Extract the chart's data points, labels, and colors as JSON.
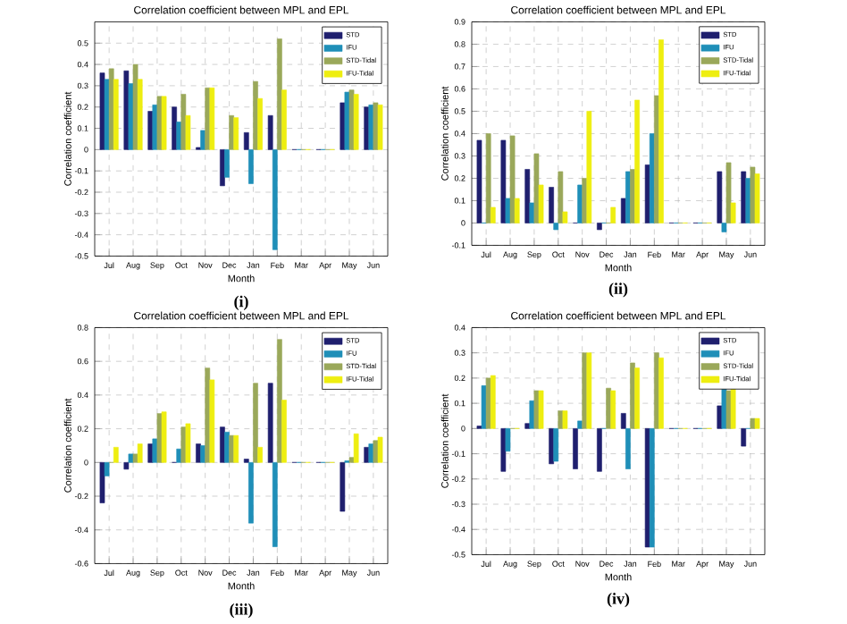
{
  "chart_data": [
    {
      "type": "bar",
      "title": "Correlation coefficient between MPL and EPL",
      "xlabel": "Month",
      "ylabel": "Correlation coefficient",
      "annotations": [
        "(i)"
      ],
      "categories": [
        "Jul",
        "Aug",
        "Sep",
        "Oct",
        "Nov",
        "Dec",
        "Jan",
        "Feb",
        "Mar",
        "Apr",
        "May",
        "Jun"
      ],
      "series": [
        {
          "name": "STD",
          "color": "#1f1f6e",
          "values": [
            0.36,
            0.37,
            0.18,
            0.2,
            0.01,
            -0.17,
            0.08,
            0.16,
            0,
            0,
            0.22,
            0.2
          ]
        },
        {
          "name": "IFU",
          "color": "#1f8fb8",
          "values": [
            0.33,
            0.31,
            0.21,
            0.13,
            0.09,
            -0.13,
            -0.16,
            -0.47,
            0,
            0,
            0.27,
            0.21
          ]
        },
        {
          "name": "STD-Tidal",
          "color": "#9aa85a",
          "values": [
            0.38,
            0.4,
            0.25,
            0.26,
            0.29,
            0.16,
            0.32,
            0.52,
            0,
            0,
            0.28,
            0.22
          ]
        },
        {
          "name": "IFU-Tidal",
          "color": "#eeee10",
          "values": [
            0.33,
            0.33,
            0.25,
            0.16,
            0.29,
            0.15,
            0.24,
            0.28,
            0,
            0,
            0.26,
            0.21
          ]
        }
      ],
      "ylim": [
        -0.5,
        0.6
      ],
      "yticks": [
        -0.5,
        -0.4,
        -0.3,
        -0.2,
        -0.1,
        0,
        0.1,
        0.2,
        0.3,
        0.4,
        0.5
      ],
      "grid": true,
      "legend": "top right"
    },
    {
      "type": "bar",
      "title": "Correlation coefficient between MPL and EPL",
      "xlabel": "Month",
      "ylabel": "Correlation coefficient",
      "annotations": [
        "(ii)"
      ],
      "categories": [
        "Jul",
        "Aug",
        "Sep",
        "Oct",
        "Nov",
        "Dec",
        "Jan",
        "Feb",
        "Mar",
        "Apr",
        "May",
        "Jun"
      ],
      "series": [
        {
          "name": "STD",
          "color": "#1f1f6e",
          "values": [
            0.37,
            0.37,
            0.24,
            0.16,
            0,
            -0.03,
            0.11,
            0.26,
            0,
            0,
            0.23,
            0.23
          ]
        },
        {
          "name": "IFU",
          "color": "#1f8fb8",
          "values": [
            0,
            0.11,
            0.09,
            -0.03,
            0.17,
            0,
            0.23,
            0.4,
            0,
            0,
            -0.04,
            0.2
          ]
        },
        {
          "name": "STD-Tidal",
          "color": "#9aa85a",
          "values": [
            0.4,
            0.39,
            0.31,
            0.23,
            0.2,
            0,
            0.24,
            0.57,
            0,
            0,
            0.27,
            0.25
          ]
        },
        {
          "name": "IFU-Tidal",
          "color": "#eeee10",
          "values": [
            0.07,
            0.11,
            0.17,
            0.05,
            0.5,
            0.07,
            0.55,
            0.82,
            0,
            0,
            0.09,
            0.22
          ]
        }
      ],
      "ylim": [
        -0.1,
        0.9
      ],
      "yticks": [
        -0.1,
        0,
        0.1,
        0.2,
        0.3,
        0.4,
        0.5,
        0.6,
        0.7,
        0.8,
        0.9
      ],
      "grid": true,
      "legend": "top right"
    },
    {
      "type": "bar",
      "title": "Correlation coefficient between MPL and EPL",
      "xlabel": "Month",
      "ylabel": "Correlation coefficient",
      "annotations": [
        "(iii)"
      ],
      "categories": [
        "Jul",
        "Aug",
        "Sep",
        "Oct",
        "Nov",
        "Dec",
        "Jan",
        "Feb",
        "Mar",
        "Apr",
        "May",
        "Jun"
      ],
      "series": [
        {
          "name": "STD",
          "color": "#1f1f6e",
          "values": [
            -0.24,
            -0.04,
            0.11,
            0,
            0.11,
            0.21,
            0.02,
            0.47,
            0,
            0,
            -0.29,
            0.09
          ]
        },
        {
          "name": "IFU",
          "color": "#1f8fb8",
          "values": [
            -0.08,
            0.05,
            0.14,
            0.08,
            0.1,
            0.18,
            -0.36,
            -0.5,
            0,
            0,
            0.01,
            0.11
          ]
        },
        {
          "name": "STD-Tidal",
          "color": "#9aa85a",
          "values": [
            0,
            0.05,
            0.29,
            0.21,
            0.56,
            0.16,
            0.47,
            0.73,
            0,
            0,
            0.03,
            0.13
          ]
        },
        {
          "name": "IFU-Tidal",
          "color": "#eeee10",
          "values": [
            0.09,
            0.11,
            0.3,
            0.23,
            0.49,
            0.16,
            0.09,
            0.37,
            0,
            0,
            0.17,
            0.15
          ]
        }
      ],
      "ylim": [
        -0.6,
        0.8
      ],
      "yticks": [
        -0.6,
        -0.4,
        -0.2,
        0,
        0.2,
        0.4,
        0.6,
        0.8
      ],
      "grid": true,
      "legend": "top right"
    },
    {
      "type": "bar",
      "title": "Correlation coefficient between MPL and EPL",
      "xlabel": "Month",
      "ylabel": "Correlation coefficient",
      "annotations": [
        "(iv)"
      ],
      "categories": [
        "Jul",
        "Aug",
        "Sep",
        "Oct",
        "Nov",
        "Dec",
        "Jan",
        "Feb",
        "Mar",
        "Apr",
        "May",
        "Jun"
      ],
      "series": [
        {
          "name": "STD",
          "color": "#1f1f6e",
          "values": [
            0.01,
            -0.17,
            0.02,
            -0.14,
            -0.16,
            -0.17,
            0.06,
            -0.47,
            0,
            0,
            0.09,
            -0.07
          ]
        },
        {
          "name": "IFU",
          "color": "#1f8fb8",
          "values": [
            0.17,
            -0.09,
            0.11,
            -0.13,
            0.03,
            0,
            -0.16,
            -0.47,
            0,
            0,
            0.17,
            0
          ]
        },
        {
          "name": "STD-Tidal",
          "color": "#9aa85a",
          "values": [
            0.2,
            0,
            0.15,
            0.07,
            0.3,
            0.16,
            0.26,
            0.3,
            0,
            0,
            0.15,
            0.04
          ]
        },
        {
          "name": "IFU-Tidal",
          "color": "#eeee10",
          "values": [
            0.21,
            0,
            0.15,
            0.07,
            0.3,
            0.15,
            0.24,
            0.28,
            0,
            0,
            0.16,
            0.04
          ]
        }
      ],
      "ylim": [
        -0.5,
        0.4
      ],
      "yticks": [
        -0.5,
        -0.4,
        -0.3,
        -0.2,
        -0.1,
        0,
        0.1,
        0.2,
        0.3,
        0.4
      ],
      "grid": true,
      "legend": "top right"
    }
  ]
}
